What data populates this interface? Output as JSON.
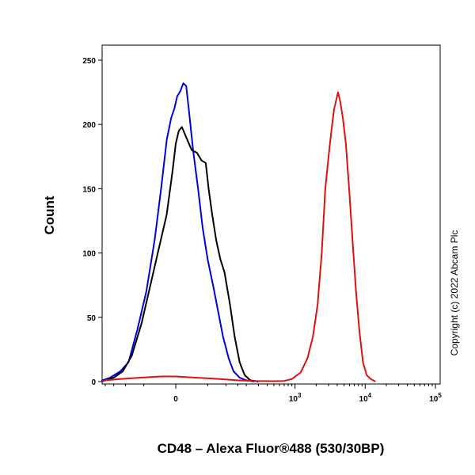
{
  "chart_data": {
    "type": "line",
    "title": "",
    "xlabel": "CD48 – Alexa Fluor®488 (530/30BP)",
    "ylabel": "Count",
    "x_scale": "biexponential",
    "ylim": [
      0,
      260
    ],
    "y_ticks": [
      0,
      50,
      100,
      150,
      200,
      250
    ],
    "x_ticks": [
      {
        "value": 0,
        "base": "0",
        "exp": ""
      },
      {
        "value": 1000,
        "base": "10",
        "exp": "3"
      },
      {
        "value": 10000,
        "base": "10",
        "exp": "4"
      },
      {
        "value": 100000,
        "base": "10",
        "exp": "5"
      }
    ],
    "grid": false,
    "legend": "none",
    "annotation": "Copyright (c) 2022 Abcam Plc",
    "series": [
      {
        "color": "#0000dd",
        "points": [
          [
            -300,
            0
          ],
          [
            -230,
            1
          ],
          [
            -170,
            3
          ],
          [
            -120,
            8
          ],
          [
            -90,
            15
          ],
          [
            -65,
            40
          ],
          [
            -45,
            70
          ],
          [
            -30,
            110
          ],
          [
            -20,
            150
          ],
          [
            -12,
            188
          ],
          [
            -6,
            205
          ],
          [
            -2,
            212
          ],
          [
            2,
            222
          ],
          [
            6,
            226
          ],
          [
            10,
            232
          ],
          [
            14,
            230
          ],
          [
            18,
            210
          ],
          [
            24,
            180
          ],
          [
            32,
            150
          ],
          [
            40,
            120
          ],
          [
            50,
            95
          ],
          [
            62,
            75
          ],
          [
            75,
            55
          ],
          [
            90,
            35
          ],
          [
            110,
            18
          ],
          [
            130,
            8
          ],
          [
            160,
            3
          ],
          [
            200,
            1
          ],
          [
            260,
            0
          ]
        ]
      },
      {
        "color": "#000000",
        "points": [
          [
            -300,
            0
          ],
          [
            -200,
            1
          ],
          [
            -150,
            3
          ],
          [
            -110,
            8
          ],
          [
            -80,
            20
          ],
          [
            -55,
            45
          ],
          [
            -40,
            70
          ],
          [
            -25,
            100
          ],
          [
            -12,
            130
          ],
          [
            -4,
            165
          ],
          [
            0,
            185
          ],
          [
            4,
            195
          ],
          [
            8,
            198
          ],
          [
            14,
            190
          ],
          [
            22,
            180
          ],
          [
            30,
            178
          ],
          [
            38,
            172
          ],
          [
            46,
            170
          ],
          [
            52,
            150
          ],
          [
            60,
            130
          ],
          [
            70,
            110
          ],
          [
            82,
            95
          ],
          [
            95,
            85
          ],
          [
            115,
            60
          ],
          [
            135,
            35
          ],
          [
            160,
            15
          ],
          [
            190,
            5
          ],
          [
            230,
            1
          ],
          [
            300,
            0
          ]
        ]
      },
      {
        "color": "#dd1111",
        "points": [
          [
            -300,
            0
          ],
          [
            -200,
            1
          ],
          [
            -120,
            2
          ],
          [
            -60,
            3
          ],
          [
            -20,
            4
          ],
          [
            0,
            4
          ],
          [
            30,
            3
          ],
          [
            80,
            2
          ],
          [
            150,
            1
          ],
          [
            250,
            0.5
          ],
          [
            500,
            0.3
          ],
          [
            700,
            0.5
          ],
          [
            900,
            2
          ],
          [
            1200,
            7
          ],
          [
            1500,
            18
          ],
          [
            1800,
            35
          ],
          [
            2100,
            60
          ],
          [
            2400,
            100
          ],
          [
            2700,
            150
          ],
          [
            3000,
            175
          ],
          [
            3300,
            195
          ],
          [
            3600,
            212
          ],
          [
            3900,
            220
          ],
          [
            4100,
            225
          ],
          [
            4400,
            218
          ],
          [
            4800,
            205
          ],
          [
            5300,
            185
          ],
          [
            5900,
            150
          ],
          [
            6600,
            110
          ],
          [
            7400,
            70
          ],
          [
            8300,
            38
          ],
          [
            9300,
            15
          ],
          [
            10500,
            5
          ],
          [
            12000,
            2
          ],
          [
            14000,
            0
          ]
        ]
      }
    ]
  }
}
